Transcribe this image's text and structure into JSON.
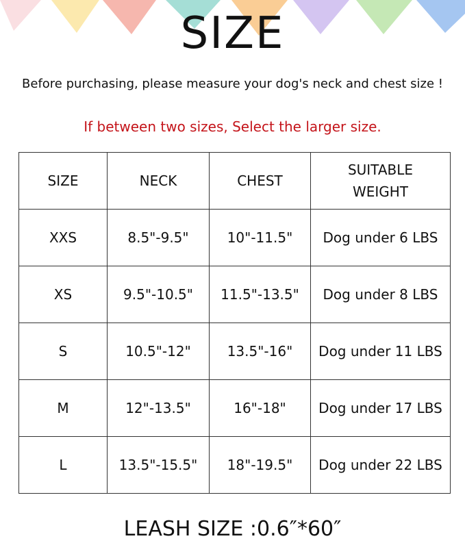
{
  "header": {
    "title": "SIZE",
    "subtitle": "Before purchasing, please measure your dog's neck and chest size !",
    "note": "If between two sizes, Select the larger size."
  },
  "table": {
    "columns": [
      "SIZE",
      "NECK",
      "CHEST",
      "SUITABLE WEIGHT"
    ],
    "rows": [
      [
        "XXS",
        "8.5\"-9.5\"",
        "10\"-11.5\"",
        "Dog under 6 LBS"
      ],
      [
        "XS",
        "9.5\"-10.5\"",
        "11.5\"-13.5\"",
        "Dog under 8 LBS"
      ],
      [
        "S",
        "10.5\"-12\"",
        "13.5\"-16\"",
        "Dog under 11 LBS"
      ],
      [
        "M",
        "12\"-13.5\"",
        "16\"-18\"",
        "Dog under 17 LBS"
      ],
      [
        "L",
        "13.5\"-15.5\"",
        "18\"-19.5\"",
        "Dog under 22 LBS"
      ]
    ]
  },
  "footer": {
    "leash": "LEASH SIZE :0.6″*60″"
  }
}
